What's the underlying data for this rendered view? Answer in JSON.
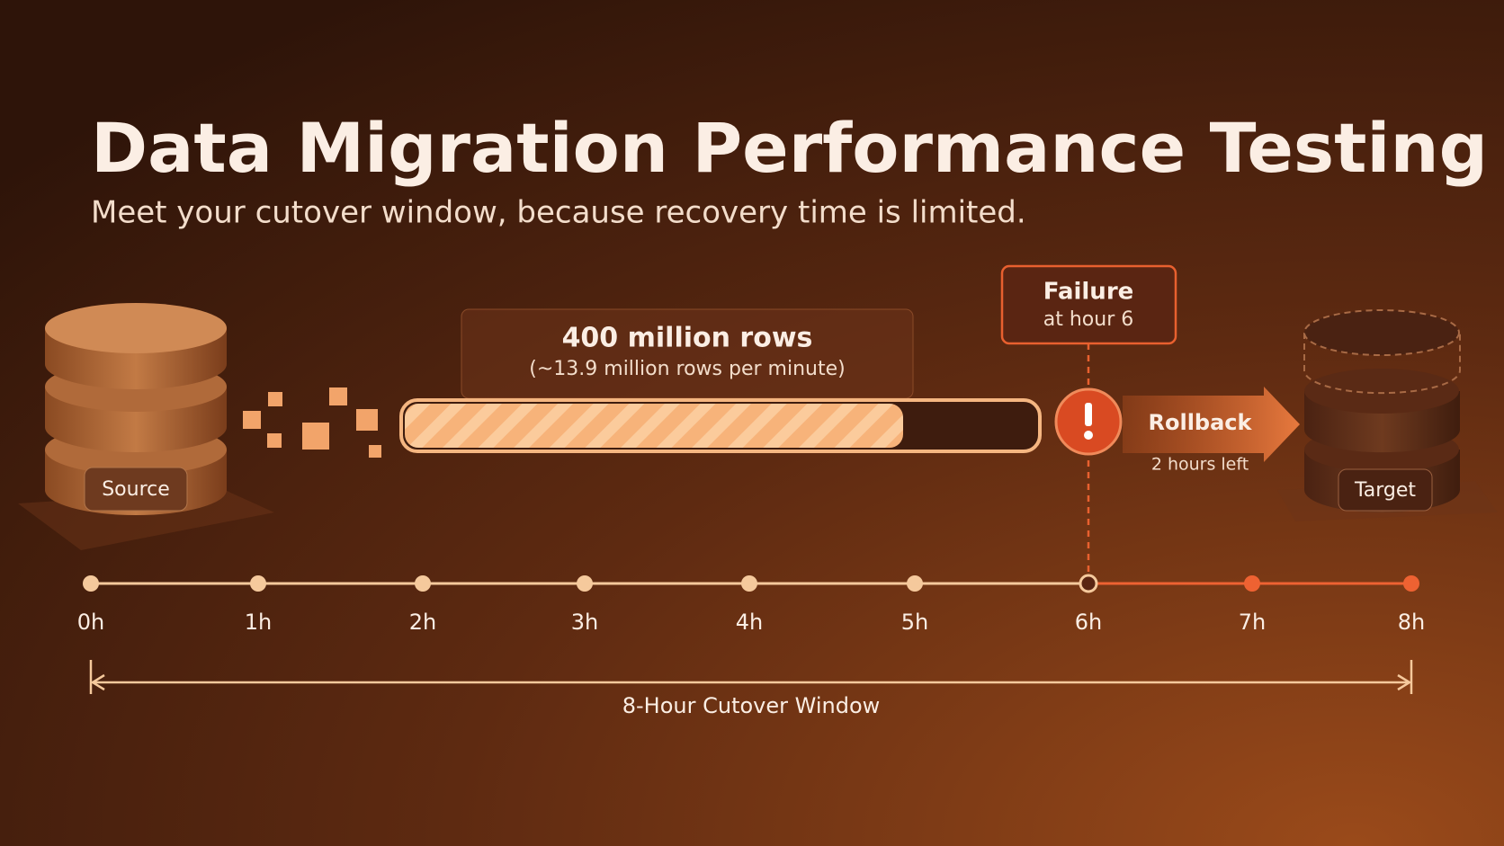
{
  "header": {
    "title": "Data Migration Performance Testing",
    "subtitle": "Meet your cutover window, because recovery time is limited."
  },
  "source": {
    "label": "Source"
  },
  "target": {
    "label": "Target"
  },
  "transfer": {
    "label": "400 million rows",
    "rate": "(~13.9 million rows per minute)"
  },
  "failure": {
    "title": "Failure",
    "detail": "at hour 6"
  },
  "rollback": {
    "label": "Rollback",
    "note": "2 hours left"
  },
  "timeline": {
    "ticks": [
      "0h",
      "1h",
      "2h",
      "3h",
      "4h",
      "5h",
      "6h",
      "7h",
      "8h"
    ],
    "window": "8-Hour Cutover Window"
  }
}
